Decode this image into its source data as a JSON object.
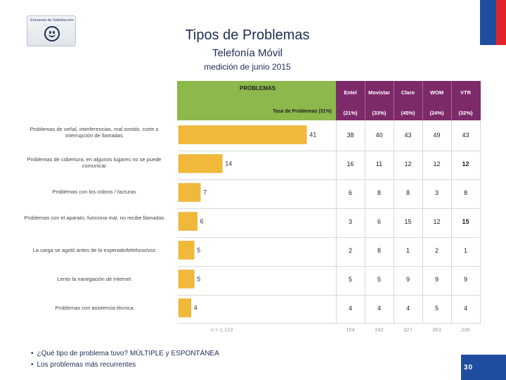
{
  "logo": {
    "text": "Encuesta de Satisfacción",
    "icon": "smiley-icon"
  },
  "header": {
    "title": "Tipos de Problemas",
    "subtitle": "Telefonía Móvil",
    "caption": "medición de junio 2015"
  },
  "chart_data": {
    "type": "bar",
    "orientation": "horizontal",
    "header_label": "PROBLEMAS",
    "rate_label": "Tasa de Problemas (31%)",
    "categories": [
      "Problemas de señal, interferencias, mal sonido, corte o interrupción de llamadas",
      "Problemas de cobertura, en algunos lugares no se puede comunicar",
      "Problemas con los cobros / facturas",
      "Problemas con el aparato, funciona mal, no recibe llamadas",
      "La carga se agotó antes de lo esperado/telefono/voz",
      "Lento la navegación de internet",
      "Problemas con asistencia técnica"
    ],
    "values": [
      41,
      14,
      7,
      6,
      5,
      5,
      4
    ],
    "xlim": [
      0,
      45
    ],
    "total_n": "n = 1.122",
    "companies": [
      {
        "name": "Entel",
        "rate": "(21%)",
        "values": [
          "38",
          "16",
          "6",
          "3",
          "2",
          "5",
          "4"
        ],
        "n": "154"
      },
      {
        "name": "Movistar",
        "rate": "(33%)",
        "values": [
          "40",
          "11",
          "8",
          "6",
          "8",
          "5",
          "4"
        ],
        "n": "242"
      },
      {
        "name": "Claro",
        "rate": "(45%)",
        "values": [
          "43",
          "12",
          "8",
          "15",
          "1",
          "9",
          "4"
        ],
        "n": "327"
      },
      {
        "name": "WOM",
        "rate": "(24%)",
        "values": [
          "49",
          "12",
          "3",
          "12",
          "2",
          "9",
          "5"
        ],
        "n": "363"
      },
      {
        "name": "VTR",
        "rate": "(32%)",
        "values": [
          "43",
          "12",
          "8",
          "15",
          "1",
          "9",
          "4"
        ],
        "n": "236"
      }
    ],
    "colors": {
      "bar": "#f0b93a",
      "header_green": "#8cb84c",
      "header_purple": "#7d2a6a"
    }
  },
  "footer": {
    "bullets": [
      "¿Qué tipo de problema tuvo? MÚLTIPLE y ESPONTÁNEA",
      "Los problemas más recurrentes"
    ],
    "page_number": "30"
  }
}
